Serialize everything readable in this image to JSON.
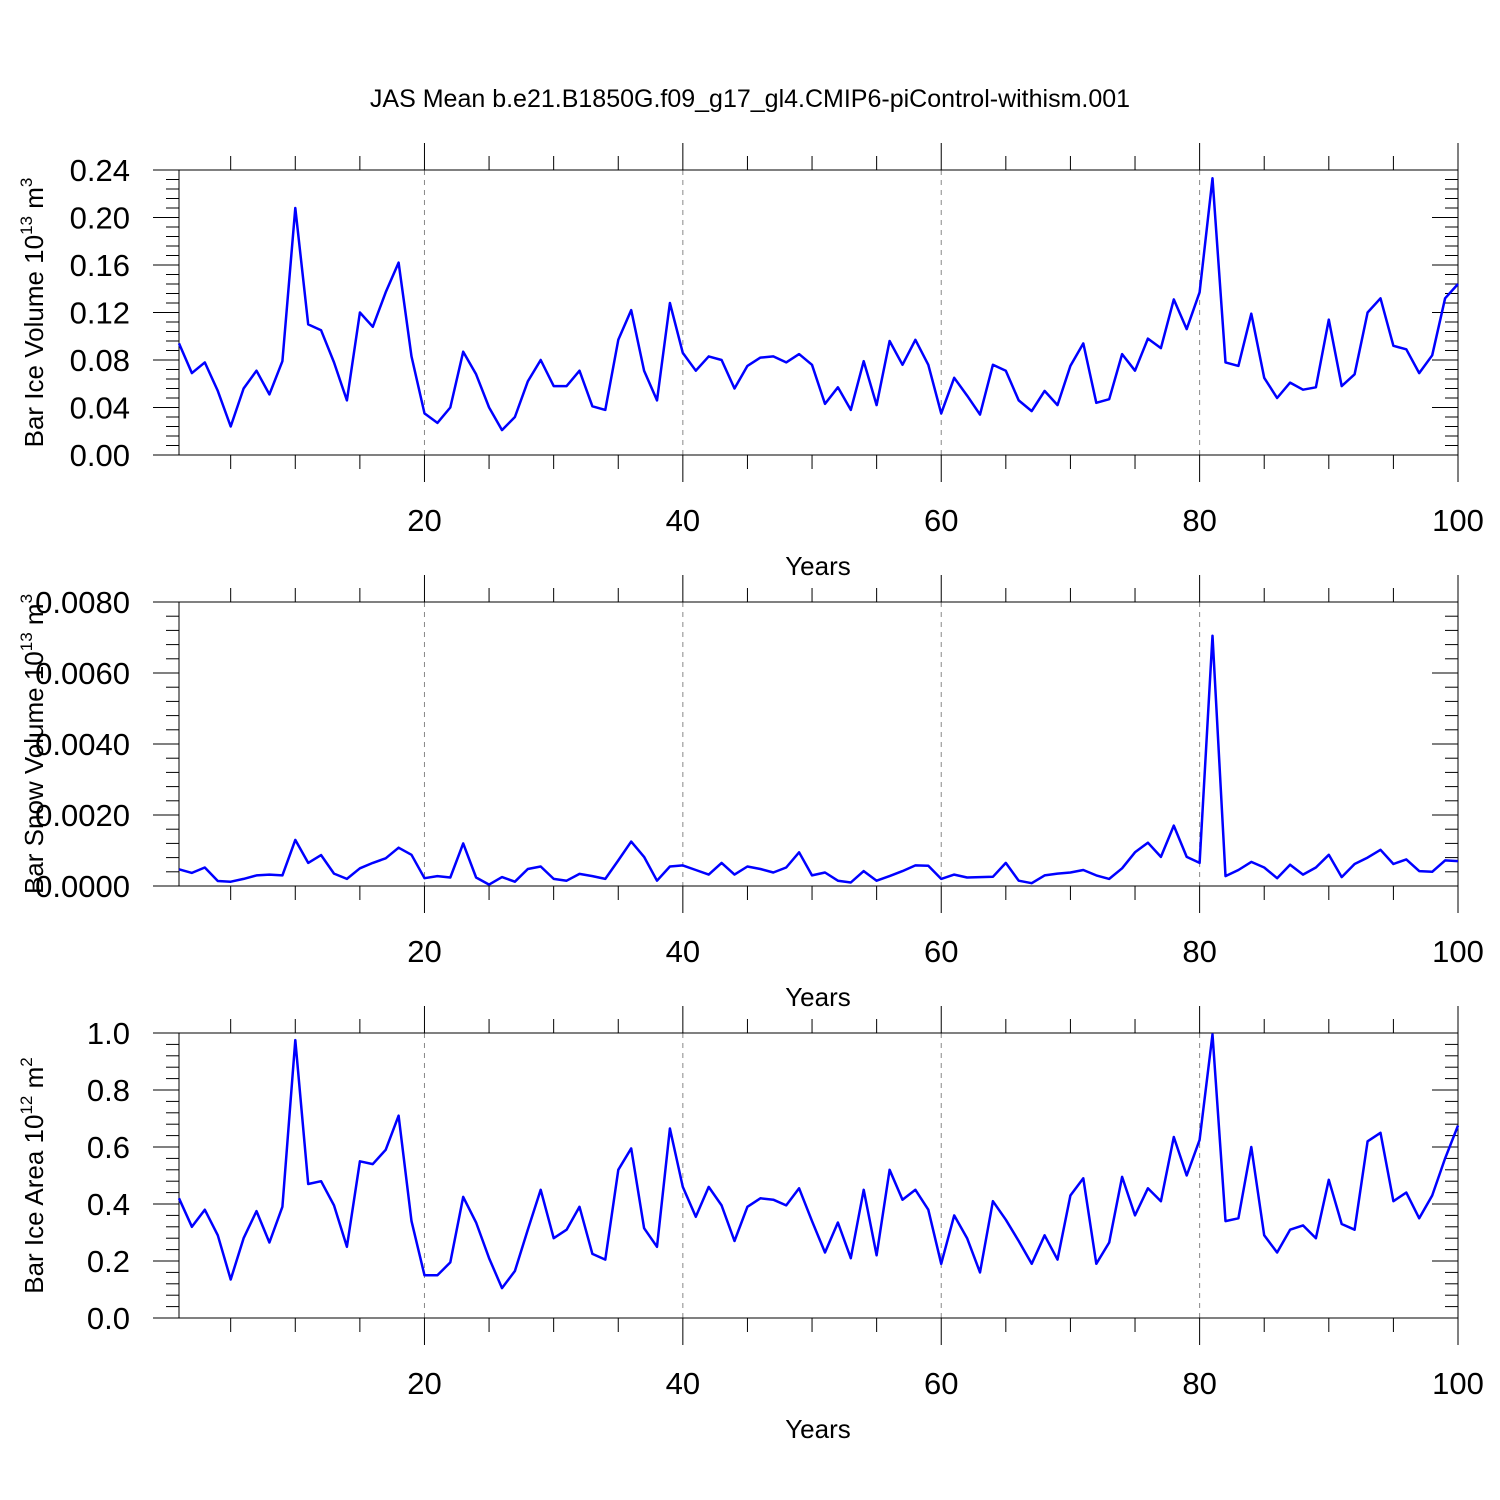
{
  "figure": {
    "title": "JAS Mean b.e21.B1850G.f09_g17_gl4.CMIP6-piControl-withism.001"
  },
  "chart_data": [
    {
      "type": "line",
      "ylabel": "Bar Ice Volume 10",
      "ylabel_exp": "13",
      "ylabel_unit": " m",
      "ylabel_unit_exp": "3",
      "xlabel": "Years",
      "xlim": [
        1,
        100
      ],
      "ylim": [
        0,
        0.24
      ],
      "x_ticks": [
        "20",
        "40",
        "60",
        "80",
        "100"
      ],
      "y_ticks": [
        "0.00",
        "0.04",
        "0.08",
        "0.12",
        "0.16",
        "0.20",
        "0.24"
      ],
      "grid": "vertical dashed at major x ticks",
      "color": "#0000ff",
      "x_start": 1,
      "values": [
        0.094,
        0.069,
        0.078,
        0.054,
        0.024,
        0.056,
        0.071,
        0.051,
        0.079,
        0.208,
        0.11,
        0.105,
        0.078,
        0.046,
        0.12,
        0.108,
        0.137,
        0.162,
        0.083,
        0.035,
        0.027,
        0.04,
        0.087,
        0.068,
        0.04,
        0.021,
        0.032,
        0.062,
        0.08,
        0.058,
        0.058,
        0.071,
        0.041,
        0.038,
        0.097,
        0.122,
        0.071,
        0.046,
        0.128,
        0.086,
        0.071,
        0.083,
        0.08,
        0.056,
        0.075,
        0.082,
        0.083,
        0.078,
        0.085,
        0.076,
        0.043,
        0.057,
        0.038,
        0.079,
        0.042,
        0.096,
        0.076,
        0.097,
        0.076,
        0.035,
        0.065,
        0.05,
        0.034,
        0.076,
        0.071,
        0.046,
        0.037,
        0.054,
        0.042,
        0.075,
        0.094,
        0.044,
        0.047,
        0.085,
        0.071,
        0.098,
        0.09,
        0.131,
        0.106,
        0.137,
        0.233,
        0.078,
        0.075,
        0.119,
        0.065,
        0.048,
        0.061,
        0.055,
        0.057,
        0.114,
        0.058,
        0.068,
        0.12,
        0.132,
        0.092,
        0.089,
        0.069,
        0.084,
        0.132,
        0.144
      ]
    },
    {
      "type": "line",
      "ylabel": "Bar Snow Volume 10",
      "ylabel_exp": "13",
      "ylabel_unit": " m",
      "ylabel_unit_exp": "3",
      "xlabel": "Years",
      "xlim": [
        1,
        100
      ],
      "ylim": [
        0,
        0.008
      ],
      "x_ticks": [
        "20",
        "40",
        "60",
        "80",
        "100"
      ],
      "y_ticks": [
        "0.0000",
        "0.0020",
        "0.0040",
        "0.0060",
        "0.0080"
      ],
      "grid": "vertical dashed at major x ticks",
      "color": "#0000ff",
      "x_start": 1,
      "values": [
        0.00047,
        0.00037,
        0.00052,
        0.00014,
        0.00012,
        0.0002,
        0.0003,
        0.00032,
        0.0003,
        0.0013,
        0.00065,
        0.00087,
        0.00035,
        0.0002,
        0.0005,
        0.00065,
        0.00078,
        0.00108,
        0.00088,
        0.00022,
        0.00028,
        0.00024,
        0.0012,
        0.00024,
        4e-05,
        0.00025,
        0.00012,
        0.00048,
        0.00055,
        0.0002,
        0.00015,
        0.00034,
        0.00028,
        0.0002,
        0.00072,
        0.00125,
        0.00082,
        0.00015,
        0.00055,
        0.00058,
        0.00045,
        0.00032,
        0.00065,
        0.00032,
        0.00055,
        0.00048,
        0.00038,
        0.00052,
        0.00095,
        0.0003,
        0.00038,
        0.00015,
        0.0001,
        0.00042,
        0.00015,
        0.00028,
        0.00042,
        0.00058,
        0.00057,
        0.0002,
        0.00032,
        0.00024,
        0.00025,
        0.00026,
        0.00065,
        0.00015,
        8e-05,
        0.0003,
        0.00035,
        0.00038,
        0.00045,
        0.0003,
        0.0002,
        0.0005,
        0.00095,
        0.00122,
        0.00082,
        0.0017,
        0.00082,
        0.00065,
        0.00705,
        0.00028,
        0.00045,
        0.00068,
        0.00052,
        0.00022,
        0.0006,
        0.00032,
        0.00052,
        0.00088,
        0.00025,
        0.00062,
        0.0008,
        0.00102,
        0.00062,
        0.00075,
        0.00042,
        0.0004,
        0.00072,
        0.0007
      ]
    },
    {
      "type": "line",
      "ylabel": "Bar Ice Area 10",
      "ylabel_exp": "12",
      "ylabel_unit": " m",
      "ylabel_unit_exp": "2",
      "xlabel": "Years",
      "xlim": [
        1,
        100
      ],
      "ylim": [
        0,
        1.0
      ],
      "x_ticks": [
        "20",
        "40",
        "60",
        "80",
        "100"
      ],
      "y_ticks": [
        "0.0",
        "0.2",
        "0.4",
        "0.6",
        "0.8",
        "1.0"
      ],
      "grid": "vertical dashed at major x ticks",
      "color": "#0000ff",
      "x_start": 1,
      "values": [
        0.42,
        0.32,
        0.38,
        0.29,
        0.135,
        0.28,
        0.375,
        0.265,
        0.39,
        0.975,
        0.47,
        0.48,
        0.395,
        0.25,
        0.55,
        0.54,
        0.59,
        0.71,
        0.34,
        0.15,
        0.15,
        0.195,
        0.425,
        0.335,
        0.21,
        0.105,
        0.165,
        0.31,
        0.45,
        0.28,
        0.31,
        0.39,
        0.225,
        0.205,
        0.52,
        0.595,
        0.315,
        0.25,
        0.665,
        0.46,
        0.355,
        0.46,
        0.395,
        0.27,
        0.39,
        0.42,
        0.415,
        0.395,
        0.455,
        0.34,
        0.23,
        0.335,
        0.21,
        0.45,
        0.22,
        0.52,
        0.415,
        0.45,
        0.38,
        0.19,
        0.36,
        0.28,
        0.16,
        0.41,
        0.345,
        0.27,
        0.19,
        0.29,
        0.205,
        0.43,
        0.49,
        0.19,
        0.265,
        0.495,
        0.36,
        0.455,
        0.41,
        0.635,
        0.5,
        0.625,
        0.995,
        0.34,
        0.35,
        0.6,
        0.29,
        0.23,
        0.31,
        0.325,
        0.28,
        0.485,
        0.33,
        0.31,
        0.62,
        0.65,
        0.41,
        0.44,
        0.35,
        0.43,
        0.56,
        0.675
      ]
    }
  ]
}
